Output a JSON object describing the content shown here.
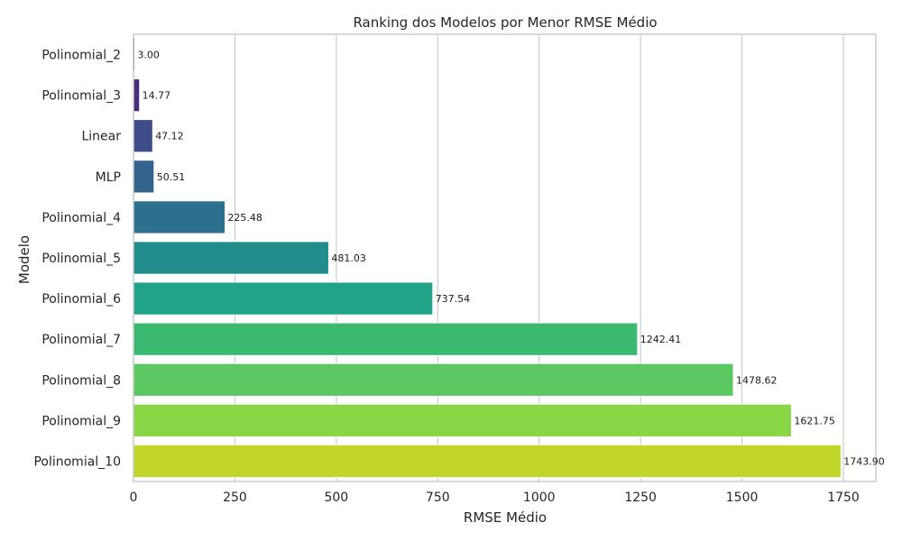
{
  "chart_data": {
    "type": "bar",
    "orientation": "horizontal",
    "title": "Ranking dos Modelos por Menor RMSE Médio",
    "xlabel": "RMSE Médio",
    "ylabel": "Modelo",
    "categories": [
      "Polinomial_2",
      "Polinomial_3",
      "Linear",
      "MLP",
      "Polinomial_4",
      "Polinomial_5",
      "Polinomial_6",
      "Polinomial_7",
      "Polinomial_8",
      "Polinomial_9",
      "Polinomial_10"
    ],
    "values": [
      3.0,
      14.77,
      47.12,
      50.51,
      225.48,
      481.03,
      737.54,
      1242.41,
      1478.62,
      1621.75,
      1743.9
    ],
    "value_labels": [
      "3.00",
      "14.77",
      "47.12",
      "50.51",
      "225.48",
      "481.03",
      "737.54",
      "1242.41",
      "1478.62",
      "1621.75",
      "1743.90"
    ],
    "xlim": [
      0,
      1830
    ],
    "xticks": [
      0,
      250,
      500,
      750,
      1000,
      1250,
      1500,
      1750
    ],
    "xtick_labels": [
      "0",
      "250",
      "500",
      "750",
      "1000",
      "1250",
      "1500",
      "1750"
    ],
    "colors": [
      "#47186a",
      "#472d7b",
      "#3e4c8a",
      "#33638d",
      "#2d708e",
      "#228c8d",
      "#20a386",
      "#3bb970",
      "#5cc863",
      "#8bd646",
      "#c1d52a"
    ],
    "grid": "vertical",
    "legend": "none"
  }
}
